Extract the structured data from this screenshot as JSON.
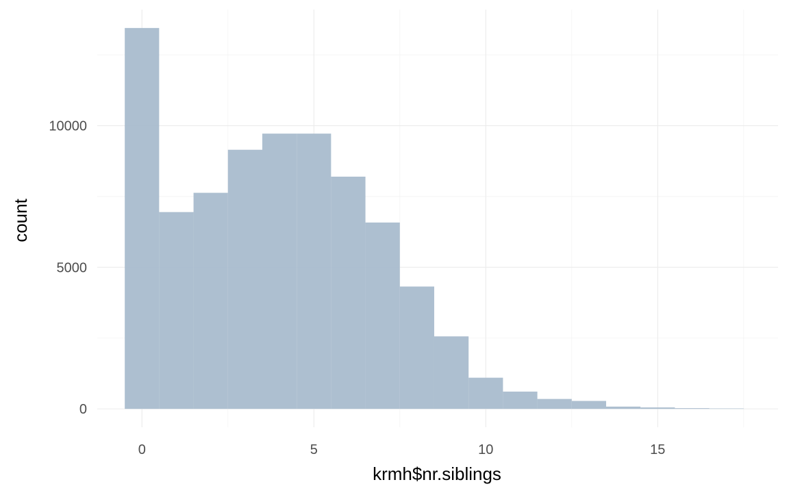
{
  "chart_data": {
    "type": "bar",
    "title": "",
    "xlabel": "krmh$nr.siblings",
    "ylabel": "count",
    "binwidth": 1,
    "x": [
      0,
      1,
      2,
      3,
      4,
      5,
      6,
      7,
      8,
      9,
      10,
      11,
      12,
      13,
      14,
      15,
      16,
      17
    ],
    "values": [
      13450,
      6950,
      7630,
      9150,
      9720,
      9720,
      8200,
      6580,
      4320,
      2560,
      1100,
      610,
      350,
      280,
      80,
      50,
      25,
      15
    ],
    "xlim": [
      -1.3,
      18.5
    ],
    "ylim": [
      -650,
      14100
    ],
    "x_ticks": [
      "0",
      "5",
      "10",
      "15"
    ],
    "y_ticks": [
      "0",
      "5000",
      "10000"
    ],
    "grid": true,
    "fill_color": "#a9bccd",
    "grid_color": "#ebebeb",
    "legend": "none"
  }
}
